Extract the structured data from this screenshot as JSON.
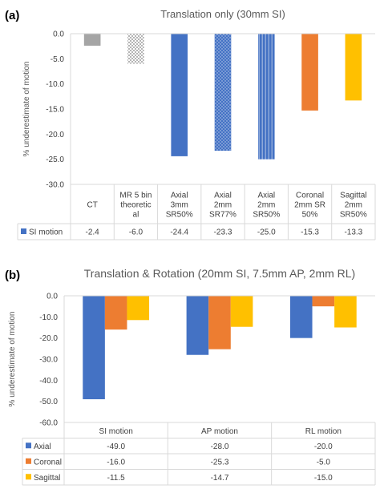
{
  "chart_data": [
    {
      "panel_label": "(a)",
      "type": "bar",
      "title": "Translation only (30mm SI)",
      "ylabel": "% underestimate of motion",
      "ylim": [
        -30.0,
        0.0
      ],
      "ytick_step": 5,
      "yticks": [
        "0.0",
        "-5.0",
        "-10.0",
        "-15.0",
        "-20.0",
        "-25.0",
        "-30.0"
      ],
      "grid": false,
      "legend": "data-table",
      "categories": [
        [
          "CT"
        ],
        [
          "MR 5 bin",
          "theoretic",
          "al"
        ],
        [
          "Axial",
          "3mm",
          "SR50%"
        ],
        [
          "Axial",
          "2mm",
          "SR77%"
        ],
        [
          "Axial",
          "2mm",
          "SR50%"
        ],
        [
          "Coronal",
          "2mm SR",
          "50%"
        ],
        [
          "Sagittal",
          "2mm",
          "SR50%"
        ]
      ],
      "series": [
        {
          "name": "SI motion",
          "values": [
            -2.4,
            -6.0,
            -24.4,
            -23.3,
            -25.0,
            -15.3,
            -13.3
          ],
          "labels": [
            "-2.4",
            "-6.0",
            "-24.4",
            "-23.3",
            "-25.0",
            "-15.3",
            "-13.3"
          ],
          "colors": [
            "#a5a5a5",
            "checker",
            "#4472c4",
            "dots",
            "vstripes",
            "#ed7d31",
            "#ffc000"
          ]
        }
      ]
    },
    {
      "panel_label": "(b)",
      "type": "bar",
      "title": "Translation & Rotation (20mm SI, 7.5mm AP, 2mm RL)",
      "ylabel": "% underestimate of motion",
      "ylim": [
        -60.0,
        0.0
      ],
      "ytick_step": 10,
      "yticks": [
        "0.0",
        "-10.0",
        "-20.0",
        "-30.0",
        "-40.0",
        "-50.0",
        "-60.0"
      ],
      "grid": false,
      "legend": "data-table",
      "categories": [
        [
          "SI motion"
        ],
        [
          "AP motion"
        ],
        [
          "RL motion"
        ]
      ],
      "series": [
        {
          "name": "Axial",
          "color": "#4472c4",
          "values": [
            -49.0,
            -28.0,
            -20.0
          ],
          "labels": [
            "-49.0",
            "-28.0",
            "-20.0"
          ]
        },
        {
          "name": "Coronal",
          "color": "#ed7d31",
          "values": [
            -16.0,
            -25.3,
            -5.0
          ],
          "labels": [
            "-16.0",
            "-25.3",
            "-5.0"
          ]
        },
        {
          "name": "Sagittal",
          "color": "#ffc000",
          "values": [
            -11.5,
            -14.7,
            -15.0
          ],
          "labels": [
            "-11.5",
            "-14.7",
            "-15.0"
          ]
        }
      ]
    }
  ]
}
